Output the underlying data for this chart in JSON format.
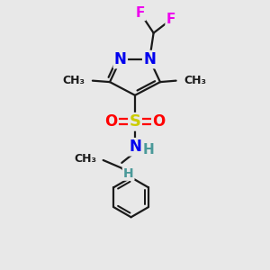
{
  "bg_color": "#e8e8e8",
  "bond_color": "#1a1a1a",
  "bond_width": 1.6,
  "atom_colors": {
    "N": "#0000ee",
    "S": "#cccc00",
    "O": "#ff0000",
    "F": "#ee00ee",
    "H_implicit": "#4a9999",
    "C": "#1a1a1a"
  },
  "xlim": [
    0,
    10
  ],
  "ylim": [
    0,
    10
  ]
}
